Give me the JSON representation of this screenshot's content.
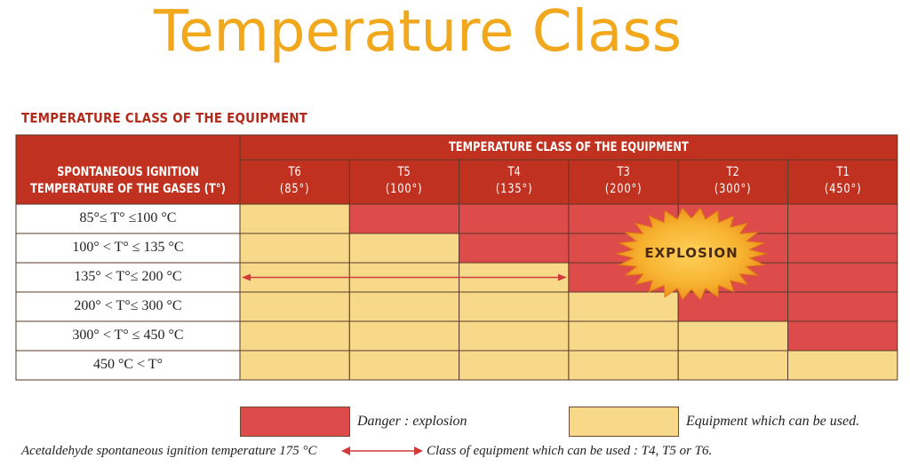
{
  "title": "Temperature Class",
  "section_title": "TEMPERATURE CLASS OF THE EQUIPMENT",
  "table": {
    "header_group": "TEMPERATURE CLASS OF THE EQUIPMENT",
    "row_header": [
      "SPONTANEOUS IGNITION",
      "TEMPERATURE OF THE GASES (T°)"
    ],
    "columns": [
      {
        "code": "T6",
        "temp": "(85°)"
      },
      {
        "code": "T5",
        "temp": "(100°)"
      },
      {
        "code": "T4",
        "temp": "(135°)"
      },
      {
        "code": "T3",
        "temp": "(200°)"
      },
      {
        "code": "T2",
        "temp": "(300°)"
      },
      {
        "code": "T1",
        "temp": "(450°)"
      }
    ],
    "rows": [
      {
        "label": "85°≤ T° ≤100 °C",
        "cells": [
          "use",
          "danger",
          "danger",
          "danger",
          "danger",
          "danger"
        ]
      },
      {
        "label": "100° < T° ≤ 135 °C",
        "cells": [
          "use",
          "use",
          "danger",
          "danger",
          "danger",
          "danger"
        ]
      },
      {
        "label": "135° < T°≤ 200 °C",
        "cells": [
          "use",
          "use",
          "use",
          "danger",
          "danger",
          "danger"
        ]
      },
      {
        "label": "200° < T°≤ 300 °C",
        "cells": [
          "use",
          "use",
          "use",
          "use",
          "danger",
          "danger"
        ]
      },
      {
        "label": "300° < T° ≤ 450 °C",
        "cells": [
          "use",
          "use",
          "use",
          "use",
          "use",
          "danger"
        ]
      },
      {
        "label": "450 °C < T°",
        "cells": [
          "use",
          "use",
          "use",
          "use",
          "use",
          "use"
        ]
      }
    ]
  },
  "explosion_label": "EXPLOSION",
  "legend": {
    "danger": "Danger : explosion",
    "use": "Equipment which can be used."
  },
  "example": {
    "left": "Acetaldehyde spontaneous ignition temperature 175 °C",
    "right": "Class of equipment which can be used : T4, T5 or T6."
  },
  "colors": {
    "danger": "#dd4b4b",
    "use": "#f8d98a",
    "header": "#c0321f",
    "title": "#f2a81d"
  }
}
